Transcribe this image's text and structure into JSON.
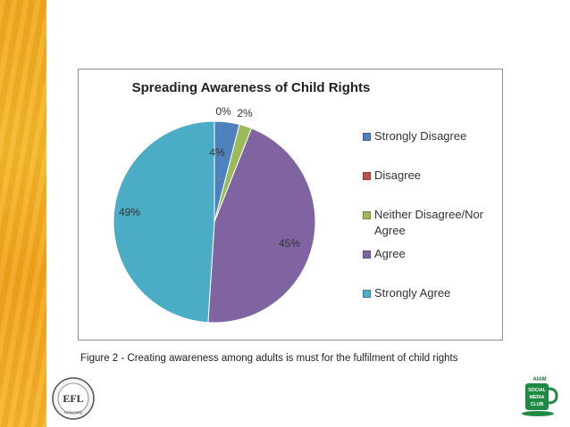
{
  "chart_data": {
    "type": "pie",
    "title": "Spreading Awareness of Child Rights",
    "categories": [
      "Strongly Disagree",
      "Disagree",
      "Neither Disagree/Nor Agree",
      "Agree",
      "Strongly Agree"
    ],
    "values": [
      4,
      0,
      2,
      45,
      49
    ],
    "labels": [
      "4%",
      "0%",
      "2%",
      "45%",
      "49%"
    ],
    "colors": [
      "#4f81bd",
      "#c0504d",
      "#9bbb59",
      "#8064a2",
      "#4bacc6"
    ],
    "legend_position": "right"
  },
  "legend": {
    "items": [
      {
        "label": "Strongly Disagree",
        "color": "#4f81bd"
      },
      {
        "label": "Disagree",
        "color": "#c0504d"
      },
      {
        "label": "Neither Disagree/Nor",
        "label2": "Agree",
        "color": "#9bbb59"
      },
      {
        "label": "Agree",
        "color": "#8064a2"
      },
      {
        "label": "Strongly Agree",
        "color": "#4bacc6"
      }
    ]
  },
  "caption": "Figure 2 - Creating awareness among adults is must for the fulfilment of child rights",
  "logos": {
    "left_text": "EFL",
    "left_sub": "University",
    "right_top": "AIAM",
    "right_lines": [
      "SOCIAL",
      "MEDIA",
      "CLUB"
    ]
  }
}
